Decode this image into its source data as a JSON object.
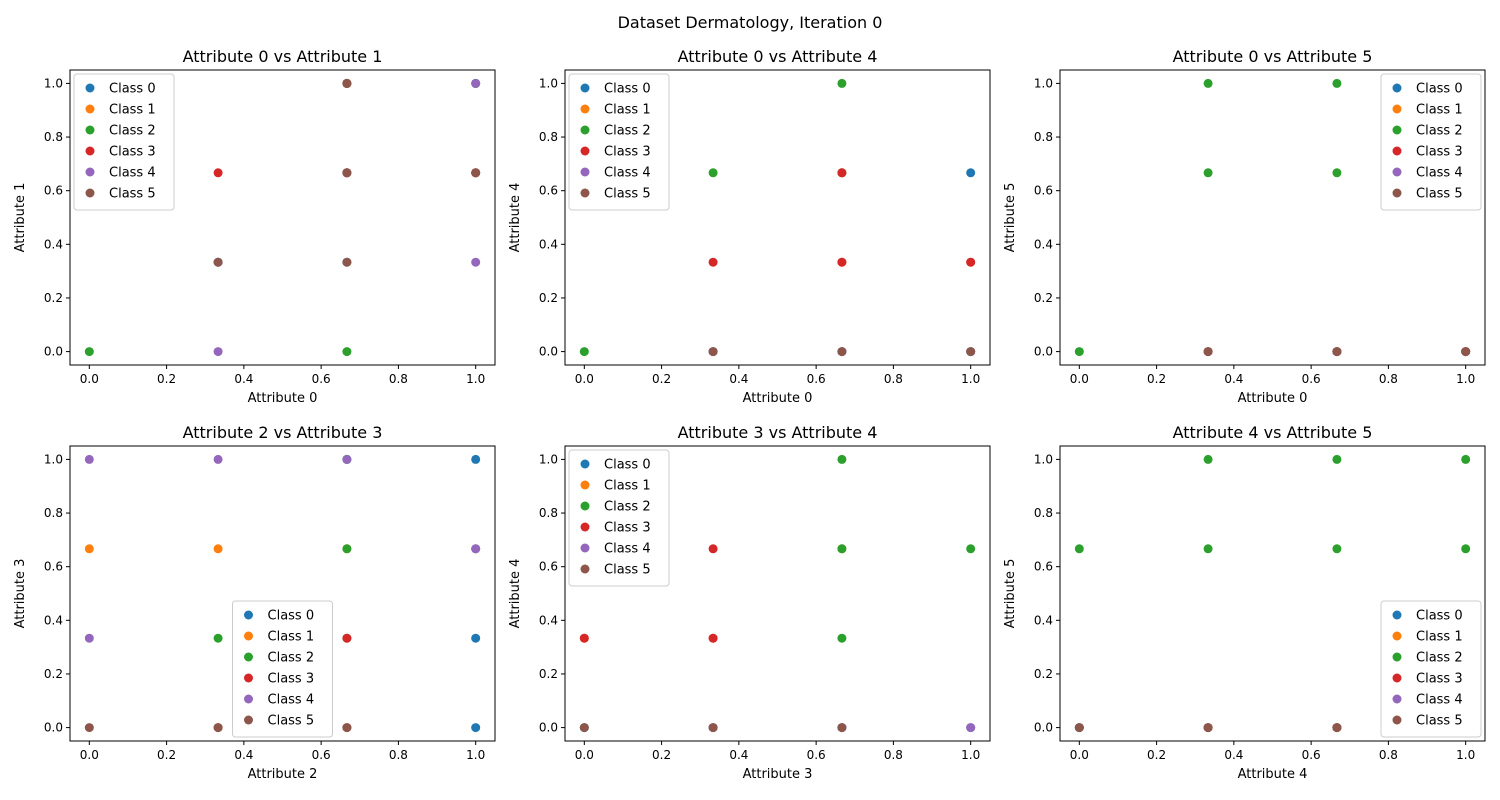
{
  "suptitle": "Dataset Dermatology, Iteration 0",
  "colors": [
    "#1f77b4",
    "#ff7f0e",
    "#2ca02c",
    "#d62728",
    "#9467bd",
    "#8c564b"
  ],
  "ticks": [
    "0.0",
    "0.2",
    "0.4",
    "0.6",
    "0.8",
    "1.0"
  ],
  "chart_data": [
    {
      "type": "scatter",
      "title": "Attribute 0 vs Attribute 1",
      "xlabel": "Attribute 0",
      "ylabel": "Attribute 1",
      "xlim": [
        -0.05,
        1.05
      ],
      "ylim": [
        -0.05,
        1.05
      ],
      "legend_position": "upper-left",
      "grid": false,
      "series": [
        {
          "name": "Class 0",
          "points": [
            [
              0.6667,
              1.0
            ],
            [
              1.0,
              1.0
            ],
            [
              0.6667,
              0.6667
            ],
            [
              1.0,
              0.6667
            ],
            [
              0.6667,
              0.3333
            ],
            [
              0.3333,
              0.3333
            ]
          ]
        },
        {
          "name": "Class 1",
          "points": [
            [
              0.6667,
              1.0
            ],
            [
              0.6667,
              0.6667
            ],
            [
              1.0,
              0.6667
            ]
          ]
        },
        {
          "name": "Class 2",
          "points": [
            [
              0.0,
              0.0
            ],
            [
              0.6667,
              0.0
            ],
            [
              0.6667,
              1.0
            ],
            [
              1.0,
              1.0
            ]
          ]
        },
        {
          "name": "Class 3",
          "points": [
            [
              0.3333,
              0.6667
            ],
            [
              0.6667,
              1.0
            ],
            [
              0.6667,
              0.6667
            ],
            [
              1.0,
              0.6667
            ]
          ]
        },
        {
          "name": "Class 4",
          "points": [
            [
              0.3333,
              0.0
            ],
            [
              1.0,
              1.0
            ],
            [
              1.0,
              0.3333
            ],
            [
              0.6667,
              0.6667
            ],
            [
              0.3333,
              0.3333
            ]
          ]
        },
        {
          "name": "Class 5",
          "points": [
            [
              0.6667,
              1.0
            ],
            [
              0.6667,
              0.6667
            ],
            [
              1.0,
              0.6667
            ],
            [
              0.6667,
              0.3333
            ],
            [
              0.3333,
              0.3333
            ]
          ]
        }
      ]
    },
    {
      "type": "scatter",
      "title": "Attribute 0 vs Attribute 4",
      "xlabel": "Attribute 0",
      "ylabel": "Attribute 4",
      "xlim": [
        -0.05,
        1.05
      ],
      "ylim": [
        -0.05,
        1.05
      ],
      "legend_position": "upper-left",
      "grid": false,
      "series": [
        {
          "name": "Class 0",
          "points": [
            [
              1.0,
              0.6667
            ],
            [
              0.6667,
              0.0
            ],
            [
              1.0,
              0.0
            ],
            [
              0.3333,
              0.0
            ]
          ]
        },
        {
          "name": "Class 1",
          "points": [
            [
              0.6667,
              0.6667
            ],
            [
              0.6667,
              0.3333
            ],
            [
              1.0,
              0.3333
            ]
          ]
        },
        {
          "name": "Class 2",
          "points": [
            [
              0.0,
              0.0
            ],
            [
              0.3333,
              0.6667
            ],
            [
              0.6667,
              1.0
            ],
            [
              0.6667,
              0.6667
            ]
          ]
        },
        {
          "name": "Class 3",
          "points": [
            [
              0.3333,
              0.3333
            ],
            [
              0.6667,
              0.6667
            ],
            [
              0.6667,
              0.3333
            ],
            [
              1.0,
              0.3333
            ]
          ]
        },
        {
          "name": "Class 4",
          "points": [
            [
              0.3333,
              0.0
            ],
            [
              0.6667,
              0.0
            ],
            [
              1.0,
              0.0
            ]
          ]
        },
        {
          "name": "Class 5",
          "points": [
            [
              0.3333,
              0.0
            ],
            [
              0.6667,
              0.0
            ],
            [
              1.0,
              0.0
            ]
          ]
        }
      ]
    },
    {
      "type": "scatter",
      "title": "Attribute 0 vs Attribute 5",
      "xlabel": "Attribute 0",
      "ylabel": "Attribute 5",
      "xlim": [
        -0.05,
        1.05
      ],
      "ylim": [
        -0.05,
        1.05
      ],
      "legend_position": "upper-right",
      "grid": false,
      "series": [
        {
          "name": "Class 0",
          "points": [
            [
              0.6667,
              0.0
            ],
            [
              1.0,
              0.0
            ]
          ]
        },
        {
          "name": "Class 1",
          "points": [
            [
              0.6667,
              0.0
            ],
            [
              1.0,
              0.0
            ]
          ]
        },
        {
          "name": "Class 2",
          "points": [
            [
              0.0,
              0.0
            ],
            [
              0.3333,
              1.0
            ],
            [
              0.3333,
              0.6667
            ],
            [
              0.6667,
              1.0
            ],
            [
              0.6667,
              0.6667
            ]
          ]
        },
        {
          "name": "Class 3",
          "points": [
            [
              0.3333,
              0.0
            ],
            [
              0.6667,
              0.0
            ],
            [
              1.0,
              0.0
            ]
          ]
        },
        {
          "name": "Class 4",
          "points": [
            [
              0.3333,
              0.0
            ],
            [
              0.6667,
              0.0
            ],
            [
              1.0,
              0.0
            ]
          ]
        },
        {
          "name": "Class 5",
          "points": [
            [
              0.3333,
              0.0
            ],
            [
              0.6667,
              0.0
            ],
            [
              1.0,
              0.0
            ]
          ]
        }
      ]
    },
    {
      "type": "scatter",
      "title": "Attribute 2 vs Attribute 3",
      "xlabel": "Attribute 2",
      "ylabel": "Attribute 3",
      "xlim": [
        -0.05,
        1.05
      ],
      "ylim": [
        -0.05,
        1.05
      ],
      "legend_position": "lower-center",
      "grid": false,
      "series": [
        {
          "name": "Class 0",
          "points": [
            [
              1.0,
              1.0
            ],
            [
              1.0,
              0.6667
            ],
            [
              1.0,
              0.3333
            ],
            [
              1.0,
              0.0
            ],
            [
              0.6667,
              1.0
            ]
          ]
        },
        {
          "name": "Class 1",
          "points": [
            [
              0.0,
              0.6667
            ],
            [
              0.3333,
              0.6667
            ],
            [
              0.6667,
              0.6667
            ]
          ]
        },
        {
          "name": "Class 2",
          "points": [
            [
              0.3333,
              0.3333
            ],
            [
              0.6667,
              0.6667
            ],
            [
              0.6667,
              0.3333
            ],
            [
              0.6667,
              1.0
            ]
          ]
        },
        {
          "name": "Class 3",
          "points": [
            [
              0.3333,
              0.0
            ],
            [
              0.6667,
              0.3333
            ],
            [
              0.6667,
              0.0
            ]
          ]
        },
        {
          "name": "Class 4",
          "points": [
            [
              0.0,
              1.0
            ],
            [
              0.3333,
              1.0
            ],
            [
              0.6667,
              1.0
            ],
            [
              0.0,
              0.3333
            ],
            [
              1.0,
              0.6667
            ]
          ]
        },
        {
          "name": "Class 5",
          "points": [
            [
              0.0,
              0.0
            ],
            [
              0.3333,
              0.0
            ],
            [
              0.6667,
              0.0
            ]
          ]
        }
      ]
    },
    {
      "type": "scatter",
      "title": "Attribute 3 vs Attribute 4",
      "xlabel": "Attribute 3",
      "ylabel": "Attribute 4",
      "xlim": [
        -0.05,
        1.05
      ],
      "ylim": [
        -0.05,
        1.05
      ],
      "legend_position": "upper-left",
      "grid": false,
      "series": [
        {
          "name": "Class 0",
          "points": [
            [
              0.0,
              0.0
            ],
            [
              0.3333,
              0.0
            ],
            [
              0.6667,
              0.0
            ],
            [
              1.0,
              0.0
            ]
          ]
        },
        {
          "name": "Class 1",
          "points": [
            [
              0.6667,
              0.6667
            ],
            [
              0.3333,
              0.3333
            ],
            [
              0.0,
              0.3333
            ]
          ]
        },
        {
          "name": "Class 2",
          "points": [
            [
              0.6667,
              1.0
            ],
            [
              0.6667,
              0.6667
            ],
            [
              0.6667,
              0.3333
            ],
            [
              1.0,
              0.6667
            ]
          ]
        },
        {
          "name": "Class 3",
          "points": [
            [
              0.3333,
              0.6667
            ],
            [
              0.3333,
              0.3333
            ],
            [
              0.0,
              0.3333
            ]
          ]
        },
        {
          "name": "Class 4",
          "points": [
            [
              0.3333,
              0.0
            ],
            [
              0.6667,
              0.0
            ],
            [
              1.0,
              0.0
            ]
          ]
        },
        {
          "name": "Class 5",
          "points": [
            [
              0.0,
              0.0
            ],
            [
              0.3333,
              0.0
            ],
            [
              0.6667,
              0.0
            ]
          ]
        }
      ]
    },
    {
      "type": "scatter",
      "title": "Attribute 4 vs Attribute 5",
      "xlabel": "Attribute 4",
      "ylabel": "Attribute 5",
      "xlim": [
        -0.05,
        1.05
      ],
      "ylim": [
        -0.05,
        1.05
      ],
      "legend_position": "lower-right",
      "grid": false,
      "series": [
        {
          "name": "Class 0",
          "points": [
            [
              0.0,
              0.0
            ],
            [
              0.6667,
              0.0
            ]
          ]
        },
        {
          "name": "Class 1",
          "points": [
            [
              0.3333,
              0.0
            ],
            [
              0.6667,
              0.0
            ]
          ]
        },
        {
          "name": "Class 2",
          "points": [
            [
              0.0,
              0.6667
            ],
            [
              0.3333,
              1.0
            ],
            [
              0.3333,
              0.6667
            ],
            [
              0.6667,
              1.0
            ],
            [
              0.6667,
              0.6667
            ],
            [
              1.0,
              1.0
            ],
            [
              1.0,
              0.6667
            ]
          ]
        },
        {
          "name": "Class 3",
          "points": [
            [
              0.3333,
              0.0
            ],
            [
              0.6667,
              0.0
            ]
          ]
        },
        {
          "name": "Class 4",
          "points": [
            [
              0.0,
              0.0
            ],
            [
              0.3333,
              0.0
            ]
          ]
        },
        {
          "name": "Class 5",
          "points": [
            [
              0.0,
              0.0
            ],
            [
              0.3333,
              0.0
            ],
            [
              0.6667,
              0.0
            ]
          ]
        }
      ]
    }
  ]
}
